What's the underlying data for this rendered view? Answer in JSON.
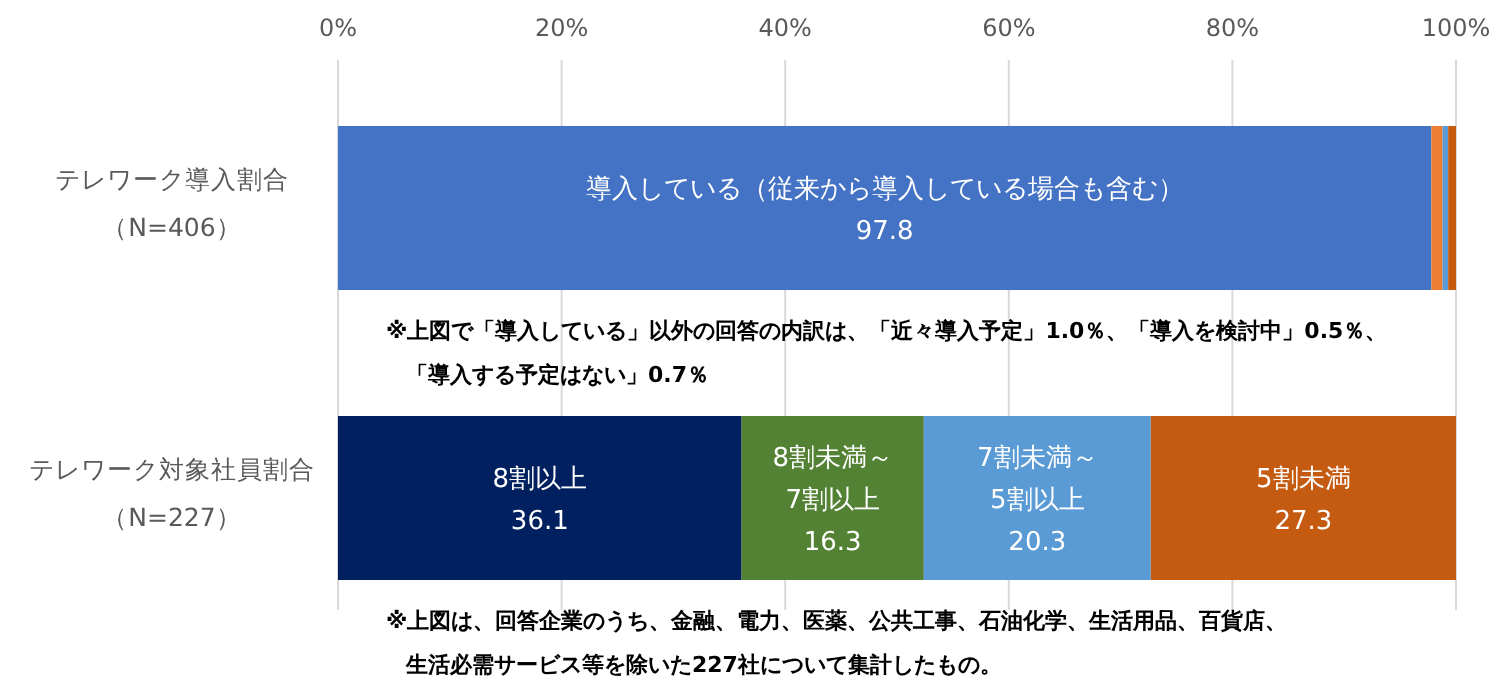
{
  "chart_data": {
    "type": "bar",
    "orientation": "horizontal",
    "stacked": true,
    "grid": "x",
    "categories": [
      "テレワーク導入割合（N=406）",
      "テレワーク対象社員割合（N=227）"
    ],
    "xlim": [
      0,
      100
    ],
    "xticks": [
      {
        "value": 0,
        "label": "0%"
      },
      {
        "value": 20,
        "label": "20%"
      },
      {
        "value": 40,
        "label": "40%"
      },
      {
        "value": 60,
        "label": "60%"
      },
      {
        "value": 80,
        "label": "80%"
      },
      {
        "value": 100,
        "label": "100%"
      }
    ],
    "series": [
      {
        "name": "導入している（従来から導入している場合も含む）",
        "color": "#4472c4",
        "values": [
          97.8,
          null
        ],
        "value_labels": [
          "97.8",
          null
        ]
      },
      {
        "color": "#ed7d31",
        "values": [
          1.0,
          null
        ]
      },
      {
        "color": "#5b9bd5",
        "values": [
          0.5,
          null
        ]
      },
      {
        "color": "#c55a11",
        "values": [
          0.7,
          null
        ]
      },
      {
        "name": "8割以上",
        "color": "#002060",
        "values": [
          null,
          36.1
        ],
        "value_labels": [
          null,
          "36.1"
        ]
      },
      {
        "name": "8割未満～7割以上",
        "color": "#548235",
        "values": [
          null,
          16.3
        ],
        "value_labels": [
          null,
          "16.3"
        ]
      },
      {
        "name": "7割未満～5割以上",
        "color": "#5b9bd5",
        "values": [
          null,
          20.3
        ],
        "value_labels": [
          null,
          "20.3"
        ]
      },
      {
        "name": "5割未満",
        "color": "#c55a11",
        "values": [
          null,
          27.3
        ],
        "value_labels": [
          null,
          "27.3"
        ]
      }
    ],
    "annotations": [
      "※上図で「導入している」以外の回答の内訳は、「近々導入予定」1.0％、「導入を検討中」0.5％、",
      "「導入する予定はない」0.7％",
      "※上図は、回答企業のうち、金融、電力、医薬、公共工事、石油化学、生活用品、百貨店、",
      "生活必需サービス等を除いた227社について集計したもの。"
    ]
  }
}
